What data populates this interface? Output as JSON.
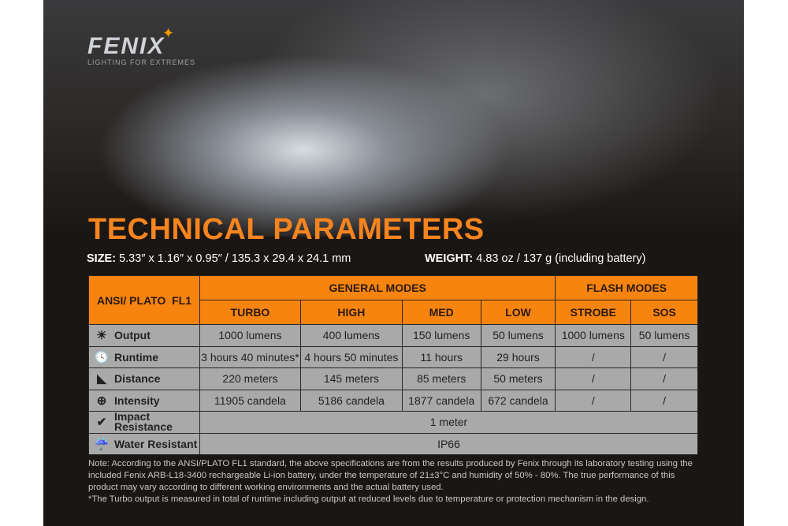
{
  "brand": {
    "name": "FENIX",
    "tagline": "LIGHTING FOR EXTREMES"
  },
  "title": "TECHNICAL PARAMETERS",
  "size": {
    "label": "SIZE:",
    "value": "5.33″ x 1.16″ x 0.95″ / 135.3 x 29.4 x 24.1 mm"
  },
  "weight": {
    "label": "WEIGHT:",
    "value": "4.83 oz / 137 g (including battery)"
  },
  "table": {
    "corner": "ANSI/ PLATO  FL1",
    "groups": [
      "GENERAL MODES",
      "FLASH MODES"
    ],
    "modes": [
      "TURBO",
      "HIGH",
      "MED",
      "LOW",
      "STROBE",
      "SOS"
    ],
    "rows": [
      {
        "icon": "output-rays-icon",
        "label": "Output",
        "values": [
          "1000 lumens",
          "400 lumens",
          "150 lumens",
          "50 lumens",
          "1000 lumens",
          "50 lumens"
        ]
      },
      {
        "icon": "clock-icon",
        "label": "Runtime",
        "values": [
          "3 hours 40 minutes*",
          "4 hours 50 minutes",
          "11 hours",
          "29 hours",
          "/",
          "/"
        ]
      },
      {
        "icon": "beam-distance-icon",
        "label": "Distance",
        "values": [
          "220 meters",
          "145 meters",
          "85 meters",
          "50 meters",
          "/",
          "/"
        ]
      },
      {
        "icon": "intensity-target-icon",
        "label": "Intensity",
        "values": [
          "11905 candela",
          "5186 candela",
          "1877 candela",
          "672 candela",
          "/",
          "/"
        ]
      }
    ],
    "impact": {
      "icon": "impact-icon",
      "label": "Impact Resistance",
      "value": "1 meter"
    },
    "water": {
      "icon": "water-icon",
      "label": "Water Resistant",
      "value": "IP66"
    }
  },
  "notes": [
    "Note: According to the ANSI/PLATO FL1 standard, the above specifications are from the results produced by Fenix through its laboratory testing using the included Fenix ARB-L18-3400 rechargeable Li-ion battery, under the temperature of 21±3°C and humidity of 50% - 80%. The true performance of this product may vary according to different working environments and the actual battery used.",
    "*The Turbo output is measured in total of runtime including output at reduced levels due to temperature or protection mechanism in the design."
  ],
  "colors": {
    "accent": "#f7840f",
    "cell": "#a9a9a9",
    "background": "#1a1614"
  }
}
